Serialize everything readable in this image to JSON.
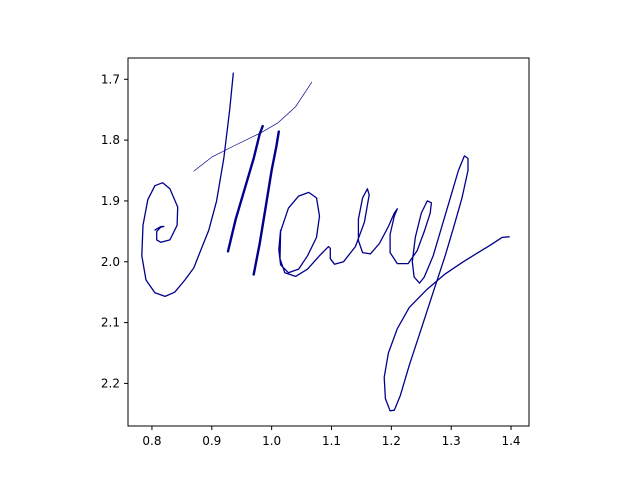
{
  "chart_data": {
    "type": "line",
    "title": "",
    "xlabel": "",
    "ylabel": "",
    "xlim": [
      0.76,
      1.43
    ],
    "ylim": [
      2.27,
      1.665
    ],
    "y_inverted": true,
    "grid": false,
    "legend": "none",
    "x_ticks": [
      "0.8",
      "0.9",
      "1.0",
      "1.1",
      "1.2",
      "1.3",
      "1.4"
    ],
    "y_ticks": [
      "1.7",
      "1.8",
      "1.9",
      "2.0",
      "2.1",
      "2.2"
    ],
    "x_tick_values": [
      0.8,
      0.9,
      1.0,
      1.1,
      1.2,
      1.3,
      1.4
    ],
    "y_tick_values": [
      1.7,
      1.8,
      1.9,
      2.0,
      2.1,
      2.2
    ],
    "line_color": "#00008b",
    "series": [
      {
        "stroke": "thin",
        "points": [
          [
            0.87,
            1.851
          ],
          [
            0.9,
            1.828
          ],
          [
            0.94,
            1.808
          ],
          [
            0.98,
            1.789
          ],
          [
            1.01,
            1.772
          ],
          [
            1.04,
            1.745
          ],
          [
            1.067,
            1.705
          ]
        ]
      },
      {
        "stroke": "medium",
        "points": [
          [
            0.805,
            1.948
          ],
          [
            0.815,
            1.942
          ],
          [
            0.82,
            1.942
          ],
          [
            0.815,
            1.943
          ],
          [
            0.808,
            1.95
          ],
          [
            0.808,
            1.964
          ],
          [
            0.815,
            1.968
          ],
          [
            0.83,
            1.964
          ],
          [
            0.842,
            1.94
          ],
          [
            0.843,
            1.91
          ],
          [
            0.83,
            1.88
          ],
          [
            0.818,
            1.87
          ],
          [
            0.805,
            1.875
          ],
          [
            0.793,
            1.898
          ],
          [
            0.785,
            1.94
          ],
          [
            0.783,
            1.99
          ],
          [
            0.79,
            2.03
          ],
          [
            0.805,
            2.051
          ],
          [
            0.822,
            2.057
          ],
          [
            0.838,
            2.05
          ],
          [
            0.855,
            2.03
          ],
          [
            0.87,
            2.01
          ],
          [
            0.882,
            1.98
          ],
          [
            0.895,
            1.948
          ],
          [
            0.908,
            1.9
          ],
          [
            0.92,
            1.83
          ],
          [
            0.93,
            1.75
          ],
          [
            0.936,
            1.69
          ]
        ]
      },
      {
        "stroke": "thick",
        "points": [
          [
            0.927,
            1.983
          ],
          [
            0.94,
            1.93
          ],
          [
            0.955,
            1.88
          ],
          [
            0.97,
            1.83
          ],
          [
            0.98,
            1.79
          ],
          [
            0.985,
            1.777
          ]
        ]
      },
      {
        "stroke": "thick",
        "points": [
          [
            0.97,
            2.021
          ],
          [
            0.98,
            1.97
          ],
          [
            0.99,
            1.91
          ],
          [
            1.0,
            1.85
          ],
          [
            1.008,
            1.81
          ],
          [
            1.012,
            1.786
          ]
        ]
      },
      {
        "stroke": "medium",
        "points": [
          [
            1.015,
            1.948
          ],
          [
            1.012,
            1.98
          ],
          [
            1.015,
            2.005
          ],
          [
            1.028,
            2.018
          ],
          [
            1.045,
            2.012
          ],
          [
            1.06,
            1.99
          ],
          [
            1.075,
            1.96
          ],
          [
            1.08,
            1.925
          ],
          [
            1.075,
            1.895
          ],
          [
            1.062,
            1.886
          ],
          [
            1.045,
            1.892
          ],
          [
            1.028,
            1.912
          ],
          [
            1.015,
            1.95
          ],
          [
            1.014,
            1.995
          ],
          [
            1.022,
            2.018
          ],
          [
            1.04,
            2.024
          ],
          [
            1.06,
            2.012
          ],
          [
            1.08,
            1.99
          ],
          [
            1.095,
            1.975
          ],
          [
            1.098,
            1.978
          ],
          [
            1.098,
            1.995
          ],
          [
            1.105,
            2.004
          ],
          [
            1.12,
            2.0
          ],
          [
            1.14,
            1.975
          ],
          [
            1.155,
            1.935
          ],
          [
            1.163,
            1.89
          ],
          [
            1.16,
            1.88
          ],
          [
            1.152,
            1.895
          ],
          [
            1.145,
            1.93
          ],
          [
            1.145,
            1.965
          ],
          [
            1.152,
            1.985
          ],
          [
            1.165,
            1.987
          ],
          [
            1.18,
            1.97
          ],
          [
            1.195,
            1.942
          ],
          [
            1.205,
            1.92
          ],
          [
            1.21,
            1.913
          ],
          [
            1.205,
            1.925
          ],
          [
            1.198,
            1.955
          ],
          [
            1.198,
            1.985
          ],
          [
            1.21,
            2.003
          ],
          [
            1.228,
            2.003
          ],
          [
            1.243,
            1.982
          ],
          [
            1.255,
            1.95
          ],
          [
            1.265,
            1.92
          ],
          [
            1.267,
            1.903
          ],
          [
            1.26,
            1.9
          ],
          [
            1.25,
            1.92
          ],
          [
            1.24,
            1.96
          ],
          [
            1.235,
            2.0
          ],
          [
            1.238,
            2.025
          ],
          [
            1.247,
            2.035
          ],
          [
            1.255,
            2.025
          ],
          [
            1.27,
            1.99
          ],
          [
            1.285,
            1.94
          ],
          [
            1.3,
            1.89
          ],
          [
            1.312,
            1.85
          ],
          [
            1.322,
            1.826
          ],
          [
            1.328,
            1.83
          ],
          [
            1.328,
            1.85
          ],
          [
            1.318,
            1.895
          ],
          [
            1.305,
            1.94
          ],
          [
            1.29,
            1.99
          ],
          [
            1.27,
            2.05
          ],
          [
            1.25,
            2.11
          ],
          [
            1.23,
            2.17
          ],
          [
            1.215,
            2.22
          ],
          [
            1.205,
            2.244
          ],
          [
            1.198,
            2.245
          ],
          [
            1.19,
            2.225
          ],
          [
            1.188,
            2.19
          ],
          [
            1.195,
            2.15
          ],
          [
            1.21,
            2.11
          ],
          [
            1.23,
            2.075
          ],
          [
            1.26,
            2.045
          ],
          [
            1.29,
            2.02
          ],
          [
            1.32,
            2.0
          ],
          [
            1.345,
            1.985
          ],
          [
            1.365,
            1.973
          ],
          [
            1.385,
            1.96
          ],
          [
            1.397,
            1.959
          ]
        ]
      }
    ]
  }
}
